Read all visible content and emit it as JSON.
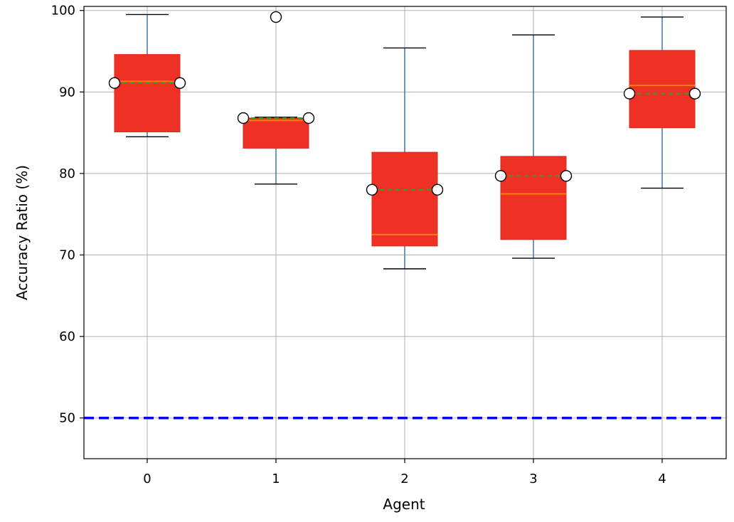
{
  "chart_data": {
    "type": "box",
    "title": "",
    "xlabel": "Agent",
    "ylabel": "Accuracy Ratio (%)",
    "categories": [
      "0",
      "1",
      "2",
      "3",
      "4"
    ],
    "ylim": [
      45,
      100.5
    ],
    "yticks": [
      50,
      60,
      70,
      80,
      90,
      100
    ],
    "grid": true,
    "boxes": [
      {
        "category": "0",
        "whisker_low": 84.5,
        "q1": 85.1,
        "median": 91.3,
        "mean": 91.1,
        "q3": 94.6,
        "whisker_high": 99.5,
        "outliers": []
      },
      {
        "category": "1",
        "whisker_low": 78.7,
        "q1": 83.1,
        "median": 86.5,
        "mean": 86.8,
        "q3": 86.8,
        "whisker_high": 86.9,
        "outliers": [
          99.2
        ]
      },
      {
        "category": "2",
        "whisker_low": 68.3,
        "q1": 71.1,
        "median": 72.5,
        "mean": 78.0,
        "q3": 82.6,
        "whisker_high": 95.4,
        "outliers": []
      },
      {
        "category": "3",
        "whisker_low": 69.6,
        "q1": 71.9,
        "median": 77.5,
        "mean": 79.7,
        "q3": 82.1,
        "whisker_high": 97.0,
        "outliers": []
      },
      {
        "category": "4",
        "whisker_low": 78.2,
        "q1": 85.6,
        "median": 90.8,
        "mean": 89.8,
        "q3": 95.1,
        "whisker_high": 99.2,
        "outliers": []
      }
    ],
    "reference_line": {
      "y": 50,
      "style": "dashed"
    },
    "colors": {
      "box_fill": "#ee3124",
      "box_edge": "#d62a1e",
      "whisker": "#4a7fb0",
      "median": "#ff7f0e",
      "mean_line": "#2ca02c",
      "cap": "#000000",
      "mean_marker_fill": "#ffffff",
      "reference": "#0000ff",
      "grid": "#b0b0b0"
    }
  }
}
